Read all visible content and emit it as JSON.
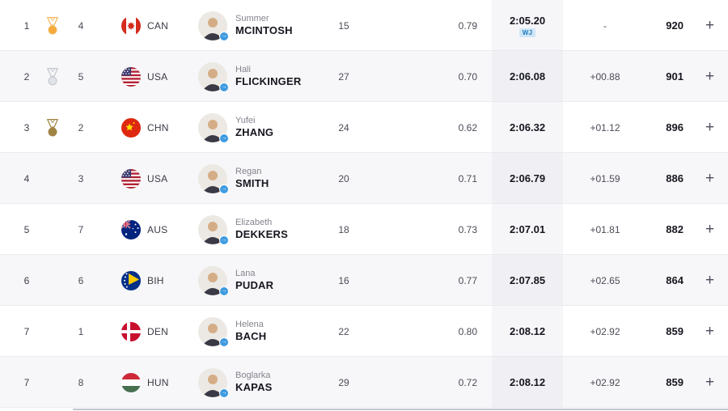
{
  "rows": [
    {
      "rank": "1",
      "medal": "gold",
      "lane": "4",
      "country": "CAN",
      "first_name": "Summer",
      "last_name": "MCINTOSH",
      "age": "15",
      "reaction_time": "0.79",
      "time": "2:05.20",
      "record_badge": "WJ",
      "gap": "-",
      "points": "920",
      "add_label": "+"
    },
    {
      "rank": "2",
      "medal": "silver",
      "lane": "5",
      "country": "USA",
      "first_name": "Hali",
      "last_name": "FLICKINGER",
      "age": "27",
      "reaction_time": "0.70",
      "time": "2:06.08",
      "record_badge": "",
      "gap": "+00.88",
      "points": "901",
      "add_label": "+"
    },
    {
      "rank": "3",
      "medal": "bronze",
      "lane": "2",
      "country": "CHN",
      "first_name": "Yufei",
      "last_name": "ZHANG",
      "age": "24",
      "reaction_time": "0.62",
      "time": "2:06.32",
      "record_badge": "",
      "gap": "+01.12",
      "points": "896",
      "add_label": "+"
    },
    {
      "rank": "4",
      "medal": "",
      "lane": "3",
      "country": "USA",
      "first_name": "Regan",
      "last_name": "SMITH",
      "age": "20",
      "reaction_time": "0.71",
      "time": "2:06.79",
      "record_badge": "",
      "gap": "+01.59",
      "points": "886",
      "add_label": "+"
    },
    {
      "rank": "5",
      "medal": "",
      "lane": "7",
      "country": "AUS",
      "first_name": "Elizabeth",
      "last_name": "DEKKERS",
      "age": "18",
      "reaction_time": "0.73",
      "time": "2:07.01",
      "record_badge": "",
      "gap": "+01.81",
      "points": "882",
      "add_label": "+"
    },
    {
      "rank": "6",
      "medal": "",
      "lane": "6",
      "country": "BIH",
      "first_name": "Lana",
      "last_name": "PUDAR",
      "age": "16",
      "reaction_time": "0.77",
      "time": "2:07.85",
      "record_badge": "",
      "gap": "+02.65",
      "points": "864",
      "add_label": "+"
    },
    {
      "rank": "7",
      "medal": "",
      "lane": "1",
      "country": "DEN",
      "first_name": "Helena",
      "last_name": "BACH",
      "age": "22",
      "reaction_time": "0.80",
      "time": "2:08.12",
      "record_badge": "",
      "gap": "+02.92",
      "points": "859",
      "add_label": "+"
    },
    {
      "rank": "7",
      "medal": "",
      "lane": "8",
      "country": "HUN",
      "first_name": "Boglarka",
      "last_name": "KAPAS",
      "age": "29",
      "reaction_time": "0.72",
      "time": "2:08.12",
      "record_badge": "",
      "gap": "+02.92",
      "points": "859",
      "add_label": "+"
    }
  ],
  "colors": {
    "gold": "#F5A93B",
    "gold_outline": "#F2B95C",
    "silver": "#E0E3E8",
    "silver_outline": "#C3C7CE",
    "bronze": "#A08444",
    "badge_bg": "#CFE6F7",
    "badge_text": "#2178BC",
    "accent_blue": "#3F9BE0",
    "row_alt_bg": "#F7F7F9",
    "time_band_bg": "#F2F2F6"
  }
}
